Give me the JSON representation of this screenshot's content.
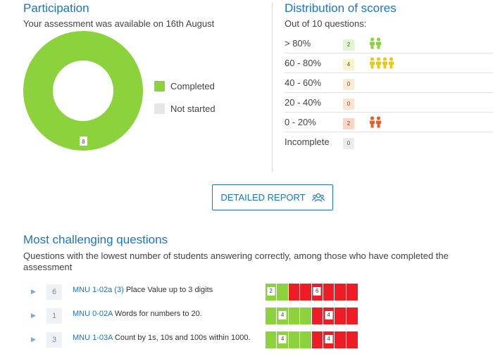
{
  "participation": {
    "title": "Participation",
    "subtitle": "Your assessment was available on 16th August",
    "completed_count": "8",
    "completed_fraction": 1.0,
    "legend": [
      {
        "label": "Completed",
        "color": "#8cd23c"
      },
      {
        "label": "Not started",
        "color": "#e6e6e6"
      }
    ]
  },
  "distribution": {
    "title": "Distribution of scores",
    "subtitle": "Out of 10 questions:",
    "rows": [
      {
        "label": "> 80%",
        "count": "2",
        "people": 2,
        "color": "#8cd23c",
        "badge_bg": "#e3f5cf"
      },
      {
        "label": "60 - 80%",
        "count": "4",
        "people": 4,
        "color": "#e8c81a",
        "badge_bg": "#fbf3cc"
      },
      {
        "label": "40 - 60%",
        "count": "0",
        "people": 0,
        "color": "#f0a030",
        "badge_bg": "#fdecd3"
      },
      {
        "label": "20 - 40%",
        "count": "0",
        "people": 0,
        "color": "#f08030",
        "badge_bg": "#fde3d0"
      },
      {
        "label": "0 - 20%",
        "count": "2",
        "people": 2,
        "color": "#ef5a2a",
        "badge_bg": "#fbd5c8"
      },
      {
        "label": "Incomplete",
        "count": "0",
        "people": 0,
        "color": "#aaaaaa",
        "badge_bg": "#ececec"
      }
    ]
  },
  "detailed_report": {
    "label": "DETAILED REPORT",
    "icon": "group-icon"
  },
  "challenging": {
    "title": "Most challenging questions",
    "subtitle": "Questions with the lowest number of students answering correctly, among those who have completed the assessment",
    "questions": [
      {
        "num": "6",
        "code": "MNU 1-02a (3)",
        "text": "Place Value up to 3 digits",
        "correct": "2",
        "incorrect": "6",
        "correct_count": 2,
        "incorrect_count": 6
      },
      {
        "num": "1",
        "code": "MNU 0-02A",
        "text": "Words for numbers to 20.",
        "correct": "4",
        "incorrect": "4",
        "correct_count": 4,
        "incorrect_count": 4
      },
      {
        "num": "3",
        "code": "MNU 1-03A",
        "text": "Count by 1s, 10s and 100s within 1000.",
        "correct": "4",
        "incorrect": "4",
        "correct_count": 4,
        "incorrect_count": 4
      }
    ],
    "correct_color": "#8cd23c",
    "incorrect_color": "#ee1c25"
  }
}
